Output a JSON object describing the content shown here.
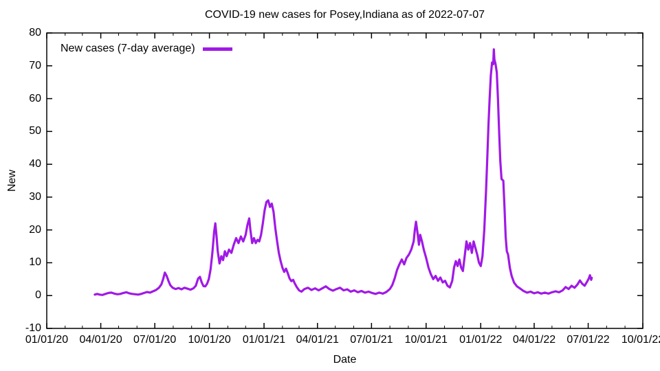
{
  "chart_data": {
    "type": "line",
    "title": "COVID-19 new cases for Posey,Indiana as of 2022-07-07",
    "xlabel": "Date",
    "ylabel": "New",
    "grid": false,
    "legend_position": "top-left-inside",
    "xlim": [
      "2020-01-01",
      "2022-10-01"
    ],
    "ylim": [
      -10,
      80
    ],
    "x_ticks": [
      "01/01/20",
      "04/01/20",
      "07/01/20",
      "10/01/20",
      "01/01/21",
      "04/01/21",
      "07/01/21",
      "10/01/21",
      "01/01/22",
      "04/01/22",
      "07/01/22",
      "10/01/22"
    ],
    "x_tick_dates": [
      "2020-01-01",
      "2020-04-01",
      "2020-07-01",
      "2020-10-01",
      "2021-01-01",
      "2021-04-01",
      "2021-07-01",
      "2021-10-01",
      "2022-01-01",
      "2022-04-01",
      "2022-07-01",
      "2022-10-01"
    ],
    "x_minor_ticks": "monthly",
    "y_ticks": [
      -10,
      0,
      10,
      20,
      30,
      40,
      50,
      60,
      70,
      80
    ],
    "axis_color": "#000000",
    "series": [
      {
        "name": "New cases (7-day average)",
        "color": "#A019E6",
        "points": [
          [
            "2020-03-22",
            0.3
          ],
          [
            "2020-03-26",
            0.5
          ],
          [
            "2020-03-30",
            0.3
          ],
          [
            "2020-04-04",
            0.2
          ],
          [
            "2020-04-09",
            0.5
          ],
          [
            "2020-04-14",
            0.8
          ],
          [
            "2020-04-19",
            0.9
          ],
          [
            "2020-04-24",
            0.6
          ],
          [
            "2020-04-29",
            0.4
          ],
          [
            "2020-05-04",
            0.5
          ],
          [
            "2020-05-09",
            0.8
          ],
          [
            "2020-05-14",
            1.0
          ],
          [
            "2020-05-19",
            0.7
          ],
          [
            "2020-05-24",
            0.5
          ],
          [
            "2020-05-29",
            0.4
          ],
          [
            "2020-06-03",
            0.3
          ],
          [
            "2020-06-08",
            0.5
          ],
          [
            "2020-06-13",
            0.8
          ],
          [
            "2020-06-18",
            1.1
          ],
          [
            "2020-06-23",
            0.9
          ],
          [
            "2020-06-28",
            1.3
          ],
          [
            "2020-07-03",
            1.7
          ],
          [
            "2020-07-08",
            2.4
          ],
          [
            "2020-07-12",
            3.4
          ],
          [
            "2020-07-15",
            5.0
          ],
          [
            "2020-07-18",
            7.0
          ],
          [
            "2020-07-21",
            6.0
          ],
          [
            "2020-07-24",
            4.5
          ],
          [
            "2020-07-27",
            3.2
          ],
          [
            "2020-07-31",
            2.4
          ],
          [
            "2020-08-05",
            2.0
          ],
          [
            "2020-08-10",
            2.3
          ],
          [
            "2020-08-15",
            1.9
          ],
          [
            "2020-08-20",
            2.4
          ],
          [
            "2020-08-25",
            2.1
          ],
          [
            "2020-08-30",
            1.8
          ],
          [
            "2020-09-04",
            2.2
          ],
          [
            "2020-09-08",
            3.0
          ],
          [
            "2020-09-12",
            5.2
          ],
          [
            "2020-09-15",
            5.7
          ],
          [
            "2020-09-18",
            4.0
          ],
          [
            "2020-09-21",
            2.9
          ],
          [
            "2020-09-24",
            2.8
          ],
          [
            "2020-09-27",
            3.6
          ],
          [
            "2020-09-30",
            5.0
          ],
          [
            "2020-10-03",
            8.0
          ],
          [
            "2020-10-06",
            13.0
          ],
          [
            "2020-10-09",
            19.5
          ],
          [
            "2020-10-11",
            22.0
          ],
          [
            "2020-10-13",
            18.0
          ],
          [
            "2020-10-15",
            13.5
          ],
          [
            "2020-10-18",
            9.8
          ],
          [
            "2020-10-21",
            12.0
          ],
          [
            "2020-10-24",
            10.8
          ],
          [
            "2020-10-27",
            13.5
          ],
          [
            "2020-10-30",
            12.0
          ],
          [
            "2020-11-03",
            14.0
          ],
          [
            "2020-11-07",
            13.0
          ],
          [
            "2020-11-11",
            15.5
          ],
          [
            "2020-11-15",
            17.5
          ],
          [
            "2020-11-19",
            16.0
          ],
          [
            "2020-11-23",
            18.0
          ],
          [
            "2020-11-27",
            16.5
          ],
          [
            "2020-12-01",
            18.5
          ],
          [
            "2020-12-04",
            21.5
          ],
          [
            "2020-12-07",
            23.5
          ],
          [
            "2020-12-09",
            20.0
          ],
          [
            "2020-12-12",
            16.0
          ],
          [
            "2020-12-15",
            17.5
          ],
          [
            "2020-12-18",
            16.0
          ],
          [
            "2020-12-21",
            17.0
          ],
          [
            "2020-12-24",
            16.5
          ],
          [
            "2020-12-27",
            18.5
          ],
          [
            "2020-12-30",
            22.0
          ],
          [
            "2021-01-02",
            26.0
          ],
          [
            "2021-01-05",
            28.5
          ],
          [
            "2021-01-08",
            29.0
          ],
          [
            "2021-01-11",
            27.0
          ],
          [
            "2021-01-14",
            28.0
          ],
          [
            "2021-01-17",
            25.5
          ],
          [
            "2021-01-20",
            20.5
          ],
          [
            "2021-01-23",
            16.5
          ],
          [
            "2021-01-26",
            13.0
          ],
          [
            "2021-01-29",
            10.5
          ],
          [
            "2021-02-01",
            8.5
          ],
          [
            "2021-02-04",
            7.2
          ],
          [
            "2021-02-07",
            8.2
          ],
          [
            "2021-02-10",
            6.8
          ],
          [
            "2021-02-13",
            5.2
          ],
          [
            "2021-02-16",
            4.4
          ],
          [
            "2021-02-19",
            4.8
          ],
          [
            "2021-02-22",
            3.6
          ],
          [
            "2021-02-25",
            2.6
          ],
          [
            "2021-03-01",
            1.6
          ],
          [
            "2021-03-05",
            1.2
          ],
          [
            "2021-03-10",
            2.0
          ],
          [
            "2021-03-16",
            2.4
          ],
          [
            "2021-03-22",
            1.7
          ],
          [
            "2021-03-28",
            2.2
          ],
          [
            "2021-04-03",
            1.6
          ],
          [
            "2021-04-09",
            2.2
          ],
          [
            "2021-04-15",
            2.8
          ],
          [
            "2021-04-21",
            2.0
          ],
          [
            "2021-04-27",
            1.5
          ],
          [
            "2021-05-03",
            2.0
          ],
          [
            "2021-05-09",
            2.4
          ],
          [
            "2021-05-15",
            1.6
          ],
          [
            "2021-05-21",
            1.9
          ],
          [
            "2021-05-27",
            1.2
          ],
          [
            "2021-06-02",
            1.6
          ],
          [
            "2021-06-08",
            1.0
          ],
          [
            "2021-06-14",
            1.4
          ],
          [
            "2021-06-20",
            0.9
          ],
          [
            "2021-06-26",
            1.2
          ],
          [
            "2021-07-02",
            0.8
          ],
          [
            "2021-07-08",
            0.5
          ],
          [
            "2021-07-14",
            0.9
          ],
          [
            "2021-07-20",
            0.6
          ],
          [
            "2021-07-26",
            1.1
          ],
          [
            "2021-08-01",
            2.0
          ],
          [
            "2021-08-05",
            3.2
          ],
          [
            "2021-08-09",
            5.2
          ],
          [
            "2021-08-13",
            7.8
          ],
          [
            "2021-08-17",
            9.5
          ],
          [
            "2021-08-21",
            11.0
          ],
          [
            "2021-08-25",
            9.5
          ],
          [
            "2021-08-29",
            11.5
          ],
          [
            "2021-09-02",
            12.5
          ],
          [
            "2021-09-06",
            14.0
          ],
          [
            "2021-09-10",
            16.5
          ],
          [
            "2021-09-12",
            20.0
          ],
          [
            "2021-09-14",
            22.5
          ],
          [
            "2021-09-17",
            18.5
          ],
          [
            "2021-09-19",
            15.5
          ],
          [
            "2021-09-21",
            18.5
          ],
          [
            "2021-09-24",
            16.5
          ],
          [
            "2021-09-27",
            14.0
          ],
          [
            "2021-10-01",
            11.5
          ],
          [
            "2021-10-05",
            8.5
          ],
          [
            "2021-10-09",
            6.5
          ],
          [
            "2021-10-13",
            5.0
          ],
          [
            "2021-10-17",
            6.0
          ],
          [
            "2021-10-21",
            4.5
          ],
          [
            "2021-10-25",
            5.5
          ],
          [
            "2021-10-29",
            4.0
          ],
          [
            "2021-11-02",
            4.5
          ],
          [
            "2021-11-06",
            3.0
          ],
          [
            "2021-11-10",
            2.5
          ],
          [
            "2021-11-14",
            4.5
          ],
          [
            "2021-11-17",
            8.5
          ],
          [
            "2021-11-20",
            10.5
          ],
          [
            "2021-11-23",
            9.0
          ],
          [
            "2021-11-26",
            11.0
          ],
          [
            "2021-11-29",
            8.5
          ],
          [
            "2021-12-02",
            7.5
          ],
          [
            "2021-12-05",
            12.0
          ],
          [
            "2021-12-08",
            16.5
          ],
          [
            "2021-12-11",
            14.0
          ],
          [
            "2021-12-14",
            16.0
          ],
          [
            "2021-12-17",
            13.0
          ],
          [
            "2021-12-20",
            16.5
          ],
          [
            "2021-12-23",
            14.5
          ],
          [
            "2021-12-26",
            12.5
          ],
          [
            "2021-12-29",
            10.0
          ],
          [
            "2022-01-01",
            9.0
          ],
          [
            "2022-01-04",
            12.0
          ],
          [
            "2022-01-07",
            20.0
          ],
          [
            "2022-01-10",
            32.0
          ],
          [
            "2022-01-12",
            42.0
          ],
          [
            "2022-01-14",
            52.0
          ],
          [
            "2022-01-16",
            60.0
          ],
          [
            "2022-01-18",
            67.0
          ],
          [
            "2022-01-20",
            71.0
          ],
          [
            "2022-01-22",
            70.5
          ],
          [
            "2022-01-23",
            75.0
          ],
          [
            "2022-01-24",
            72.0
          ],
          [
            "2022-01-26",
            70.5
          ],
          [
            "2022-01-28",
            68.0
          ],
          [
            "2022-01-30",
            60.0
          ],
          [
            "2022-02-01",
            50.0
          ],
          [
            "2022-02-03",
            41.0
          ],
          [
            "2022-02-05",
            35.5
          ],
          [
            "2022-02-08",
            35.0
          ],
          [
            "2022-02-10",
            27.0
          ],
          [
            "2022-02-12",
            18.0
          ],
          [
            "2022-02-14",
            13.5
          ],
          [
            "2022-02-16",
            12.5
          ],
          [
            "2022-02-19",
            8.5
          ],
          [
            "2022-02-22",
            6.0
          ],
          [
            "2022-02-26",
            4.0
          ],
          [
            "2022-03-03",
            2.8
          ],
          [
            "2022-03-08",
            2.2
          ],
          [
            "2022-03-14",
            1.4
          ],
          [
            "2022-03-20",
            0.9
          ],
          [
            "2022-03-26",
            1.2
          ],
          [
            "2022-04-01",
            0.7
          ],
          [
            "2022-04-07",
            1.0
          ],
          [
            "2022-04-13",
            0.6
          ],
          [
            "2022-04-19",
            0.9
          ],
          [
            "2022-04-25",
            0.6
          ],
          [
            "2022-05-01",
            1.0
          ],
          [
            "2022-05-07",
            1.3
          ],
          [
            "2022-05-13",
            1.0
          ],
          [
            "2022-05-19",
            1.6
          ],
          [
            "2022-05-24",
            2.6
          ],
          [
            "2022-05-29",
            2.0
          ],
          [
            "2022-06-03",
            3.0
          ],
          [
            "2022-06-08",
            2.4
          ],
          [
            "2022-06-13",
            3.4
          ],
          [
            "2022-06-17",
            4.6
          ],
          [
            "2022-06-21",
            3.6
          ],
          [
            "2022-06-25",
            3.0
          ],
          [
            "2022-06-29",
            4.2
          ],
          [
            "2022-07-02",
            5.2
          ],
          [
            "2022-07-04",
            6.2
          ],
          [
            "2022-07-06",
            4.8
          ],
          [
            "2022-07-07",
            5.4
          ]
        ]
      }
    ]
  }
}
